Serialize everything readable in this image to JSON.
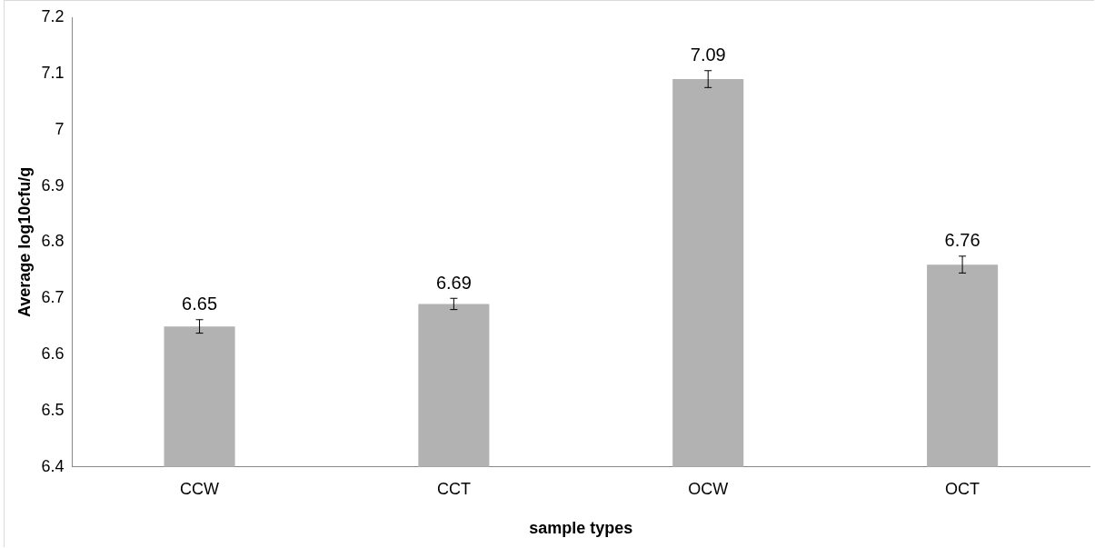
{
  "chart_data": {
    "type": "bar",
    "xlabel": "sample types",
    "ylabel": "Average log10cfu/g",
    "categories": [
      "CCW",
      "CCT",
      "OCW",
      "OCT"
    ],
    "values": [
      6.65,
      6.69,
      7.09,
      6.76
    ],
    "errors": [
      0.012,
      0.01,
      0.015,
      0.015
    ],
    "color": "#b2b2b2",
    "ylim": [
      6.4,
      7.2
    ],
    "yticks": [
      6.4,
      6.5,
      6.6,
      6.7,
      6.8,
      6.9,
      7,
      7.1,
      7.2
    ],
    "grid": false,
    "legend": false,
    "data_labels": true
  }
}
